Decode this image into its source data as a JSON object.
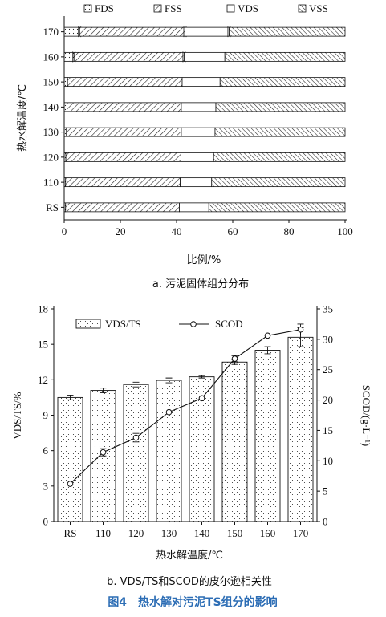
{
  "chart_data": [
    {
      "type": "bar",
      "orientation": "horizontal",
      "stacked": true,
      "caption": "a. 污泥固体组分分布",
      "xlabel": "比例/%",
      "ylabel": "热水解温度/℃",
      "xlim": [
        0,
        100
      ],
      "xticks": [
        0,
        20,
        40,
        60,
        80,
        100
      ],
      "legend_position": "top",
      "categories": [
        "RS",
        "110",
        "120",
        "130",
        "140",
        "150",
        "160",
        "170"
      ],
      "series": [
        {
          "name": "FDS",
          "values": [
            0.5,
            0.5,
            0.6,
            0.8,
            1.0,
            1.2,
            3.5,
            5.5
          ]
        },
        {
          "name": "FSS",
          "values": [
            40.5,
            40.8,
            41.0,
            40.9,
            40.7,
            40.8,
            39.2,
            37.5
          ]
        },
        {
          "name": "VDS",
          "values": [
            10.5,
            11.2,
            11.6,
            12.0,
            12.3,
            13.5,
            14.5,
            15.7
          ]
        },
        {
          "name": "VSS",
          "values": [
            48.5,
            47.5,
            46.8,
            46.3,
            46.0,
            44.5,
            42.8,
            41.3
          ]
        }
      ],
      "error_ticks": {
        "FDS": [
          0,
          0,
          0,
          0,
          0,
          0,
          1,
          1
        ],
        "FSS": [
          0,
          0,
          0,
          0,
          0,
          0,
          1,
          1
        ],
        "VDS": [
          0,
          0,
          0,
          0,
          0,
          0,
          0,
          1
        ]
      }
    },
    {
      "type": "bar",
      "caption": "b. VDS/TS和SCOD的皮尔逊相关性",
      "xlabel": "热水解温度/℃",
      "ylabel": "VDS/TS/%",
      "y2label": "SCOD/(g·L⁻¹)",
      "ylim": [
        0,
        18
      ],
      "yticks": [
        0,
        3,
        6,
        9,
        12,
        15,
        18
      ],
      "y2lim": [
        0,
        35
      ],
      "y2ticks": [
        0,
        5,
        10,
        15,
        20,
        25,
        30,
        35
      ],
      "legend_position": "top",
      "categories": [
        "RS",
        "110",
        "120",
        "130",
        "140",
        "150",
        "160",
        "170"
      ],
      "series": [
        {
          "name": "VDS/TS",
          "kind": "bar",
          "axis": "left",
          "values": [
            10.5,
            11.1,
            11.6,
            11.95,
            12.25,
            13.5,
            14.5,
            15.6
          ],
          "errors": [
            0.2,
            0.2,
            0.2,
            0.2,
            0.1,
            0.2,
            0.3,
            0.8
          ]
        },
        {
          "name": "SCOD",
          "kind": "line",
          "axis": "right",
          "values": [
            6.2,
            11.4,
            13.8,
            18.0,
            20.3,
            26.8,
            30.6,
            31.6
          ],
          "errors": [
            0,
            0.6,
            0.7,
            0,
            0,
            0.5,
            0,
            0.9
          ]
        }
      ]
    }
  ],
  "figure_title": "图4　热水解对污泥TS组分的影响",
  "colors": {
    "text": "#111111",
    "figure_title": "#2c6db5"
  }
}
